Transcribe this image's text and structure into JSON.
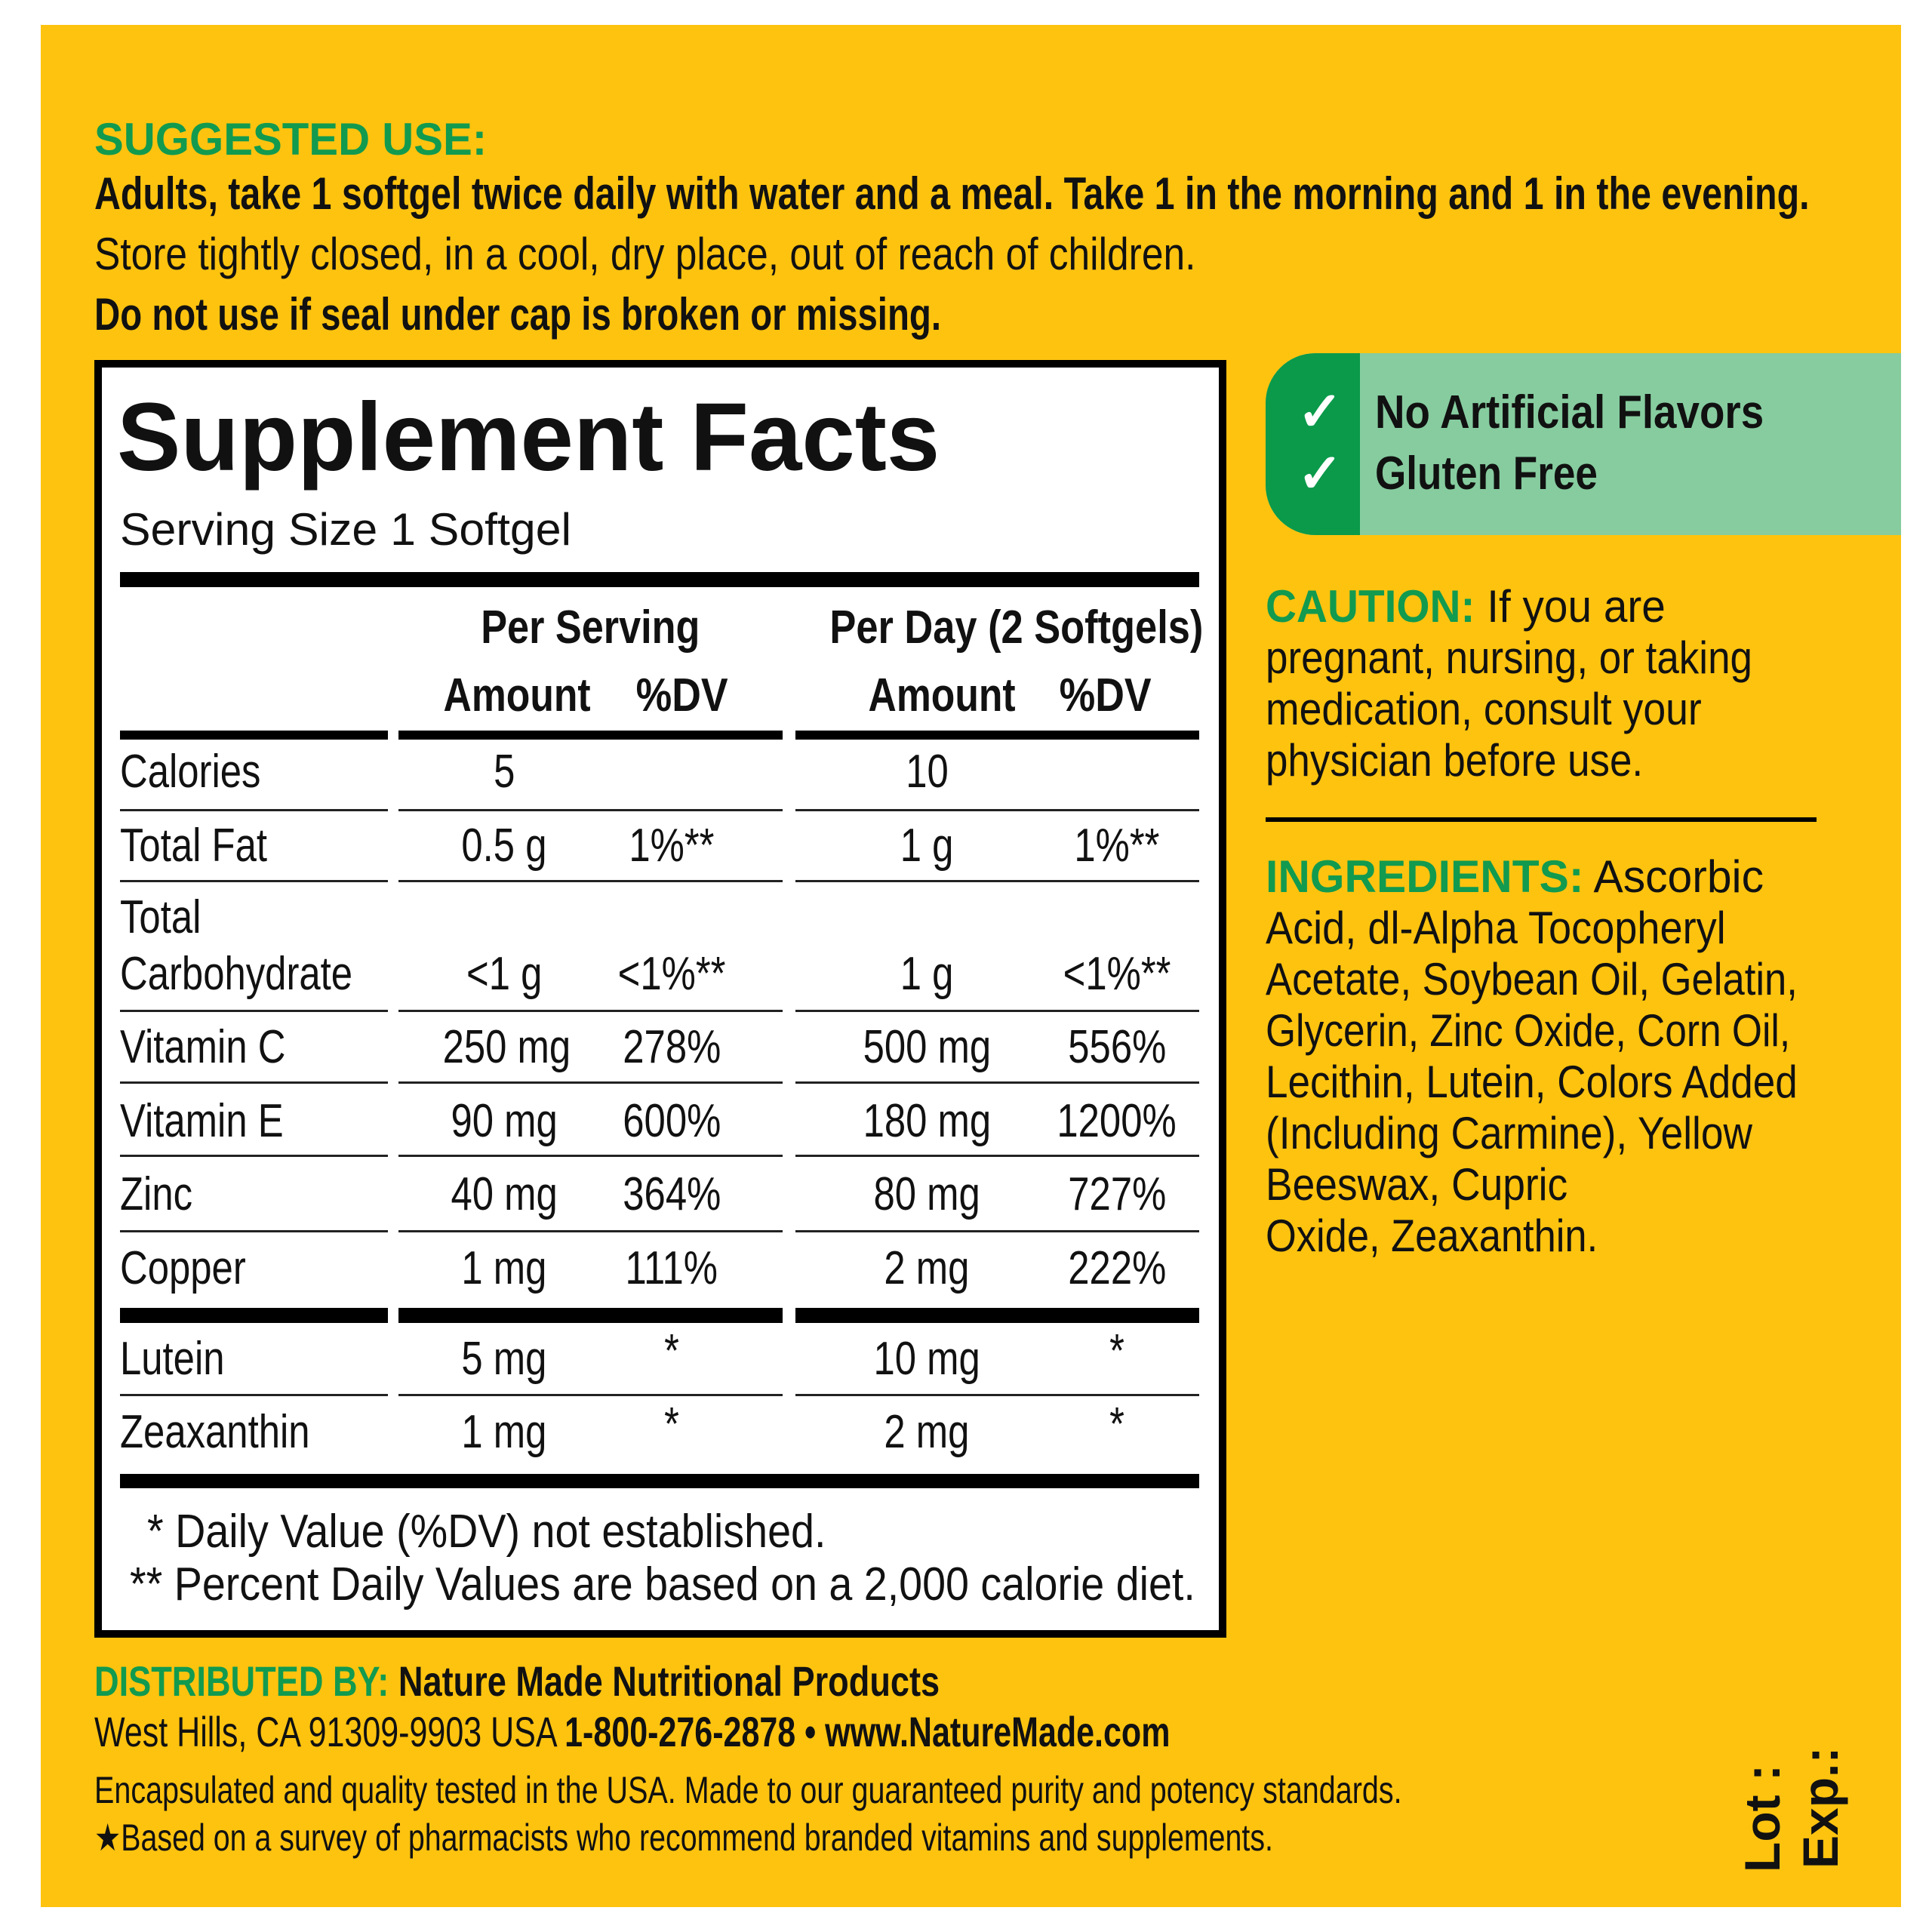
{
  "colors": {
    "background": "#fec30f",
    "accent_green": "#129a4f",
    "badge_dark": "#0a9a4a",
    "badge_light": "#86cc9f"
  },
  "suggested_use": {
    "heading": "SUGGESTED USE:",
    "line1": "Adults, take 1 softgel twice daily with water and a meal. Take 1 in the morning and 1 in the evening.",
    "line2": "Store tightly closed, in a cool, dry place, out of reach of children.",
    "line3": "Do not use if seal under cap is broken or missing."
  },
  "facts": {
    "title": "Supplement Facts",
    "serving_size": "Serving Size 1 Softgel",
    "header": {
      "per_serving": "Per Serving",
      "per_day": "Per Day (2 Softgels)",
      "amount": "Amount",
      "dv": "%DV"
    },
    "rows": [
      {
        "label": "Calories",
        "ps_amount": "5",
        "ps_dv": "",
        "pd_amount": "10",
        "pd_dv": ""
      },
      {
        "label": "Total Fat",
        "ps_amount": "0.5 g",
        "ps_dv": "1%**",
        "pd_amount": "1 g",
        "pd_dv": "1%**"
      },
      {
        "label": "Total\nCarbohydrate",
        "ps_amount": "<1 g",
        "ps_dv": "<1%**",
        "pd_amount": "1 g",
        "pd_dv": "<1%**"
      },
      {
        "label": "Vitamin C",
        "ps_amount": "250 mg",
        "ps_dv": "278%",
        "pd_amount": "500 mg",
        "pd_dv": "556%"
      },
      {
        "label": "Vitamin E",
        "ps_amount": "90 mg",
        "ps_dv": "600%",
        "pd_amount": "180 mg",
        "pd_dv": "1200%"
      },
      {
        "label": "Zinc",
        "ps_amount": "40 mg",
        "ps_dv": "364%",
        "pd_amount": "80 mg",
        "pd_dv": "727%"
      },
      {
        "label": "Copper",
        "ps_amount": "1 mg",
        "ps_dv": "111%",
        "pd_amount": "2 mg",
        "pd_dv": "222%"
      },
      {
        "label": "Lutein",
        "ps_amount": "5 mg",
        "ps_dv": "*",
        "pd_amount": "10 mg",
        "pd_dv": "*"
      },
      {
        "label": "Zeaxanthin",
        "ps_amount": "1 mg",
        "ps_dv": "*",
        "pd_amount": "2 mg",
        "pd_dv": "*"
      }
    ],
    "footnote1": "* Daily Value (%DV) not established.",
    "footnote2": "** Percent Daily Values are based on a 2,000 calorie diet."
  },
  "badge": {
    "icon": "checkmark-icon",
    "items": [
      "No Artificial Flavors",
      "Gluten Free"
    ]
  },
  "caution": {
    "heading": "CAUTION:",
    "lines": [
      " If you are",
      "pregnant, nursing, or taking",
      "medication, consult your",
      "physician before use."
    ]
  },
  "ingredients": {
    "heading": "INGREDIENTS:",
    "lines": [
      " Ascorbic",
      "Acid, dl-Alpha Tocopheryl",
      "Acetate, Soybean Oil, Gelatin,",
      "Glycerin, Zinc Oxide, Corn Oil,",
      "Lecithin, Lutein, Colors Added",
      "(Including Carmine), Yellow",
      "Beeswax, Cupric",
      "Oxide, Zeaxanthin."
    ]
  },
  "distributor": {
    "heading": "DISTRIBUTED BY:",
    "name": " Nature Made Nutritional Products",
    "address": "West Hills, CA 91309-9903 USA ",
    "phone": "1-800-276-2878",
    "bullet": " • ",
    "website": "www.NatureMade.com",
    "note1": "Encapsulated and quality tested in the USA. Made to our guaranteed purity and potency standards.",
    "note2": "★Based on a survey of pharmacists who recommend branded vitamins and supplements."
  },
  "lot_label": "Lot :",
  "exp_label": "Exp.:"
}
